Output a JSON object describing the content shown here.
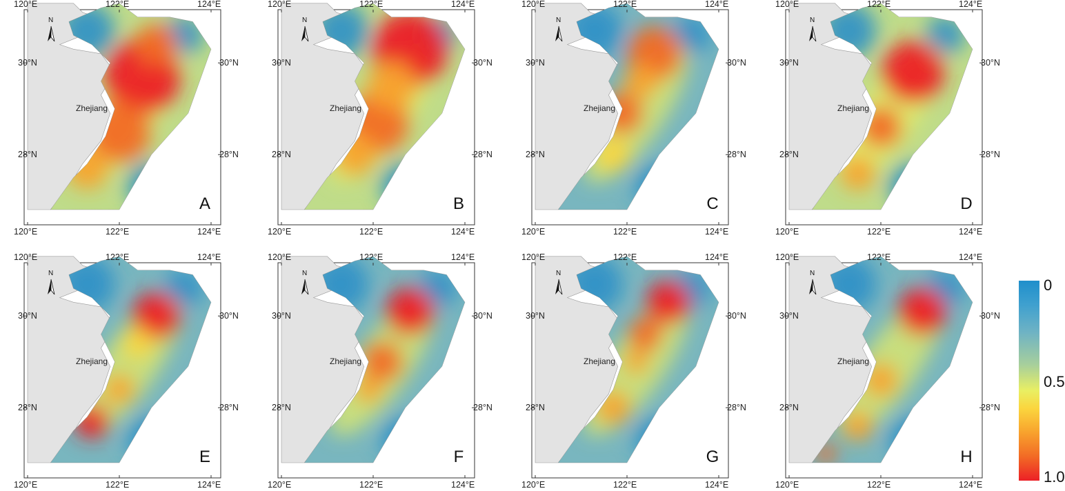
{
  "axis_labels": {
    "lon": [
      "120°E",
      "122°E",
      "124°E"
    ],
    "lat": [
      "30°N",
      "28°N"
    ]
  },
  "region_label": "Zhejiang",
  "north_arrow": {
    "label": "N",
    "icon": "north-arrow-icon"
  },
  "panels": [
    {
      "letter": "A"
    },
    {
      "letter": "B"
    },
    {
      "letter": "C"
    },
    {
      "letter": "D"
    },
    {
      "letter": "E"
    },
    {
      "letter": "F"
    },
    {
      "letter": "G"
    },
    {
      "letter": "H"
    }
  ],
  "colorbar": {
    "min_label": "0",
    "mid_label": "0.5",
    "max_label": "1.0",
    "colors": [
      "#1f8fcb",
      "#6fb3c4",
      "#a7cf9c",
      "#e9ef63",
      "#fbd53e",
      "#f8a22d",
      "#f26a25",
      "#ec2026"
    ]
  },
  "colors": {
    "land": "#e3e3e3",
    "sea_low": "#2b90c8",
    "sea_mid": "#aad39a",
    "sea_high": "#ec2026"
  }
}
